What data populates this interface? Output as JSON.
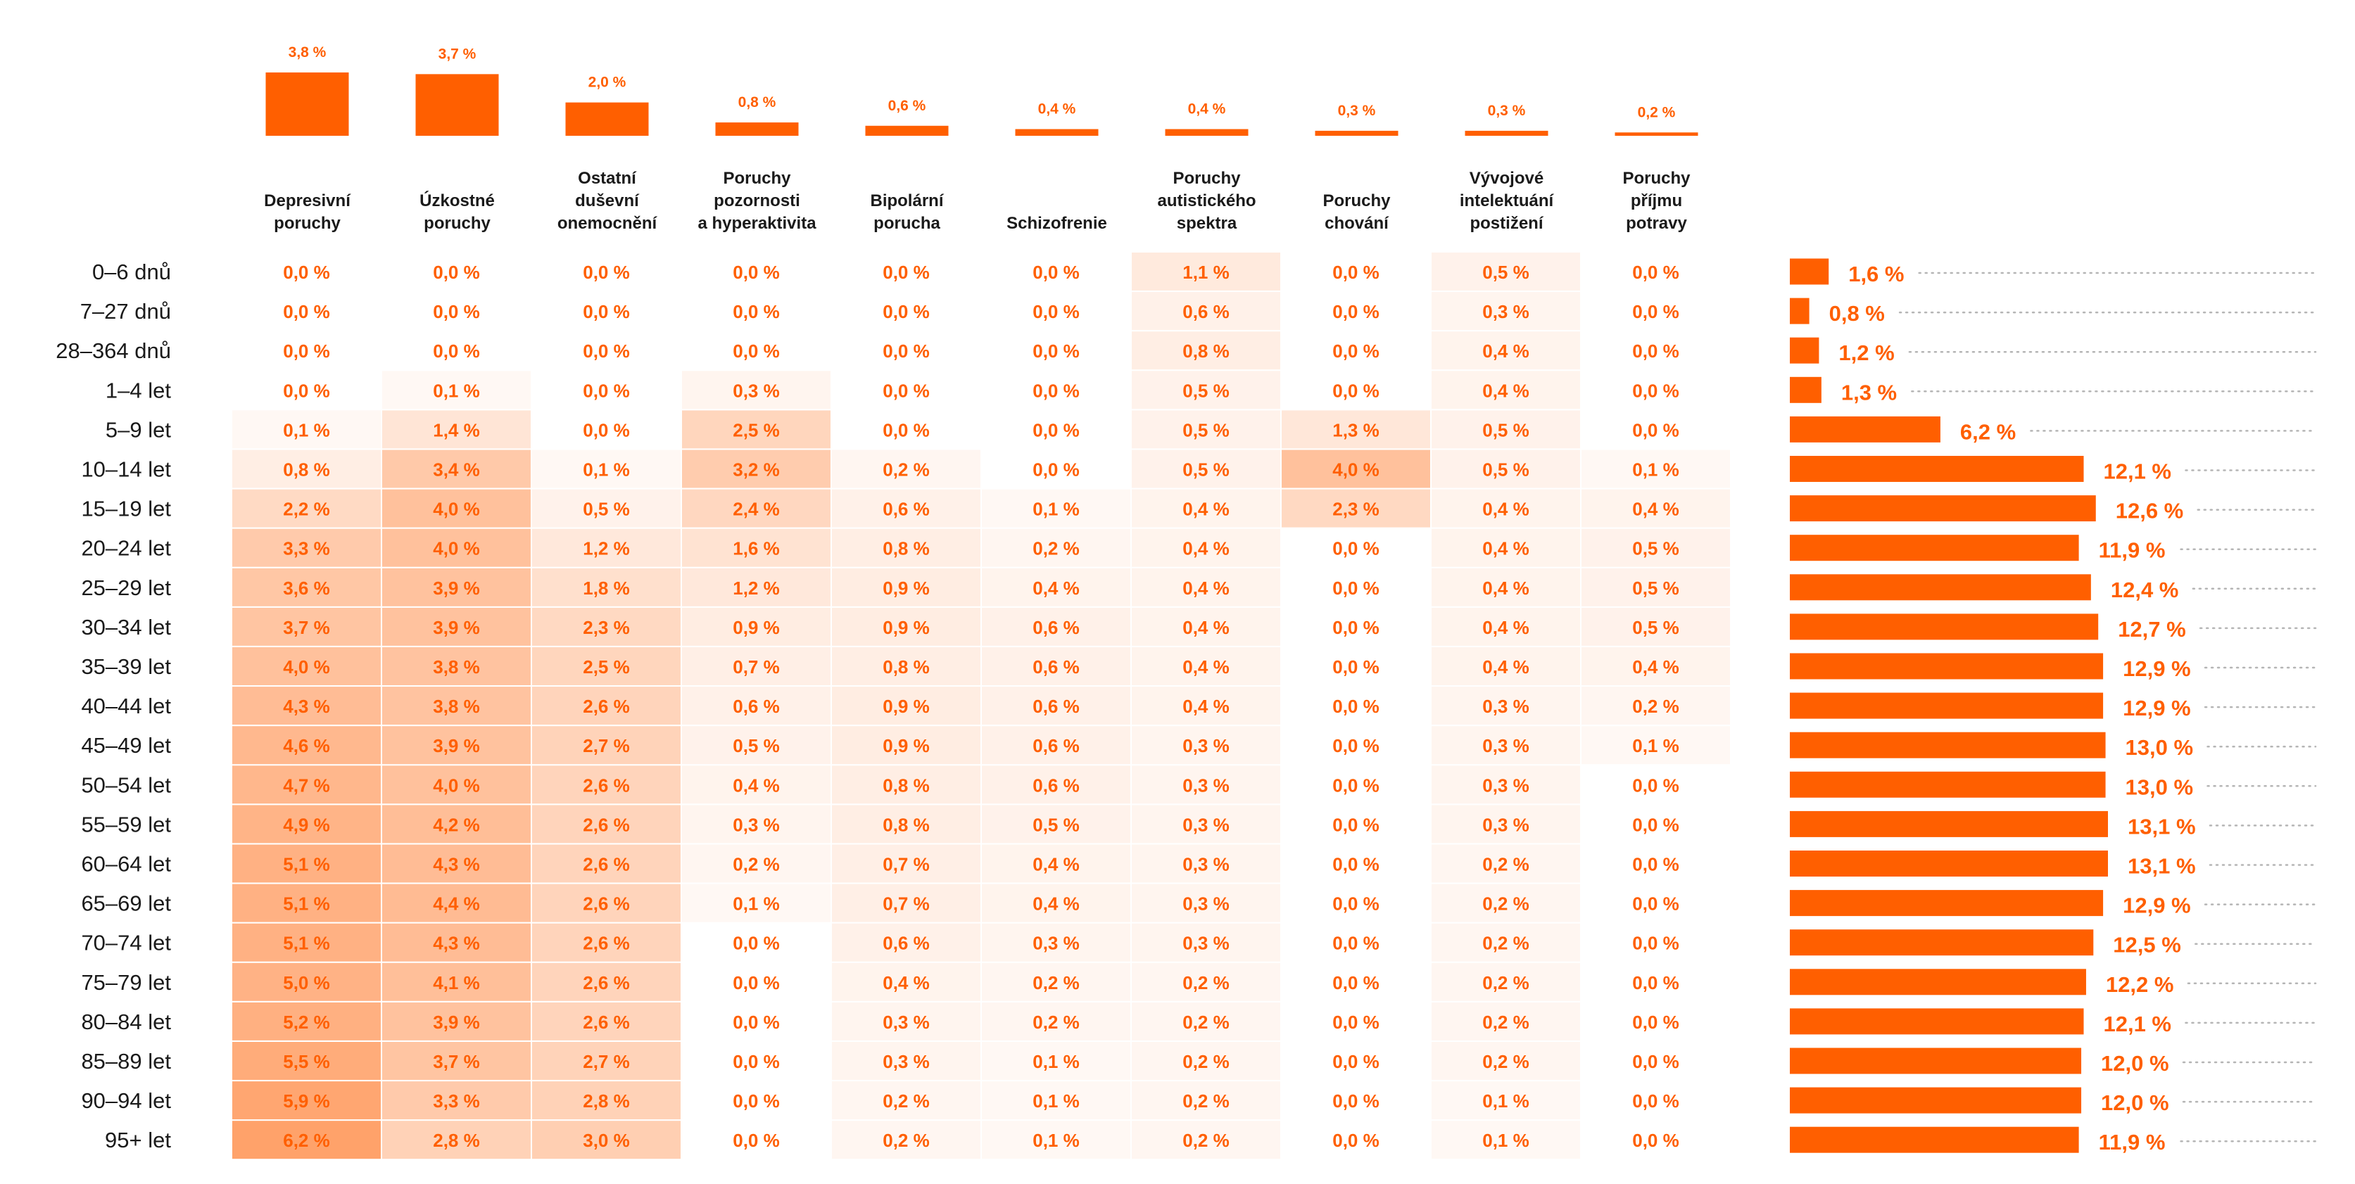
{
  "colors": {
    "accent": "#ff5f00",
    "text": "#1a1a1a",
    "dotted": "#b5b5b5"
  },
  "chart_data": {
    "type": "heatmap",
    "columns": [
      {
        "label": [
          "Depresivní",
          "poruchy"
        ],
        "overall": 3.8,
        "overall_label": "3,8 %"
      },
      {
        "label": [
          "Úzkostné",
          "poruchy"
        ],
        "overall": 3.7,
        "overall_label": "3,7 %"
      },
      {
        "label": [
          "Ostatní",
          "duševní",
          "onemocnění"
        ],
        "overall": 2.0,
        "overall_label": "2,0 %"
      },
      {
        "label": [
          "Poruchy",
          "pozornosti",
          "a hyperaktivita"
        ],
        "overall": 0.8,
        "overall_label": "0,8 %"
      },
      {
        "label": [
          "Bipolární",
          "porucha"
        ],
        "overall": 0.6,
        "overall_label": "0,6 %"
      },
      {
        "label": [
          "Schizofrenie"
        ],
        "overall": 0.4,
        "overall_label": "0,4 %"
      },
      {
        "label": [
          "Poruchy",
          "autistického",
          "spektra"
        ],
        "overall": 0.4,
        "overall_label": "0,4 %"
      },
      {
        "label": [
          "Poruchy",
          "chování"
        ],
        "overall": 0.3,
        "overall_label": "0,3 %"
      },
      {
        "label": [
          "Vývojové",
          "intelektuání",
          "postižení"
        ],
        "overall": 0.3,
        "overall_label": "0,3 %"
      },
      {
        "label": [
          "Poruchy",
          "příjmu",
          "potravy"
        ],
        "overall": 0.2,
        "overall_label": "0,2 %"
      }
    ],
    "rows": [
      "0–6 dnů",
      "7–27 dnů",
      "28–364 dnů",
      "1–4 let",
      "5–9 let",
      "10–14 let",
      "15–19 let",
      "20–24 let",
      "25–29 let",
      "30–34 let",
      "35–39 let",
      "40–44 let",
      "45–49 let",
      "50–54 let",
      "55–59 let",
      "60–64 let",
      "65–69 let",
      "70–74 let",
      "75–79 let",
      "80–84 let",
      "85–89 let",
      "90–94 let",
      "95+ let"
    ],
    "values": [
      [
        0.0,
        0.0,
        0.0,
        0.0,
        0.0,
        0.0,
        1.1,
        0.0,
        0.5,
        0.0
      ],
      [
        0.0,
        0.0,
        0.0,
        0.0,
        0.0,
        0.0,
        0.6,
        0.0,
        0.3,
        0.0
      ],
      [
        0.0,
        0.0,
        0.0,
        0.0,
        0.0,
        0.0,
        0.8,
        0.0,
        0.4,
        0.0
      ],
      [
        0.0,
        0.1,
        0.0,
        0.3,
        0.0,
        0.0,
        0.5,
        0.0,
        0.4,
        0.0
      ],
      [
        0.1,
        1.4,
        0.0,
        2.5,
        0.0,
        0.0,
        0.5,
        1.3,
        0.5,
        0.0
      ],
      [
        0.8,
        3.4,
        0.1,
        3.2,
        0.2,
        0.0,
        0.5,
        4.0,
        0.5,
        0.1
      ],
      [
        2.2,
        4.0,
        0.5,
        2.4,
        0.6,
        0.1,
        0.4,
        2.3,
        0.4,
        0.4
      ],
      [
        3.3,
        4.0,
        1.2,
        1.6,
        0.8,
        0.2,
        0.4,
        0.0,
        0.4,
        0.5
      ],
      [
        3.6,
        3.9,
        1.8,
        1.2,
        0.9,
        0.4,
        0.4,
        0.0,
        0.4,
        0.5
      ],
      [
        3.7,
        3.9,
        2.3,
        0.9,
        0.9,
        0.6,
        0.4,
        0.0,
        0.4,
        0.5
      ],
      [
        4.0,
        3.8,
        2.5,
        0.7,
        0.8,
        0.6,
        0.4,
        0.0,
        0.4,
        0.4
      ],
      [
        4.3,
        3.8,
        2.6,
        0.6,
        0.9,
        0.6,
        0.4,
        0.0,
        0.3,
        0.2
      ],
      [
        4.6,
        3.9,
        2.7,
        0.5,
        0.9,
        0.6,
        0.3,
        0.0,
        0.3,
        0.1
      ],
      [
        4.7,
        4.0,
        2.6,
        0.4,
        0.8,
        0.6,
        0.3,
        0.0,
        0.3,
        0.0
      ],
      [
        4.9,
        4.2,
        2.6,
        0.3,
        0.8,
        0.5,
        0.3,
        0.0,
        0.3,
        0.0
      ],
      [
        5.1,
        4.3,
        2.6,
        0.2,
        0.7,
        0.4,
        0.3,
        0.0,
        0.2,
        0.0
      ],
      [
        5.1,
        4.4,
        2.6,
        0.1,
        0.7,
        0.4,
        0.3,
        0.0,
        0.2,
        0.0
      ],
      [
        5.1,
        4.3,
        2.6,
        0.0,
        0.6,
        0.3,
        0.3,
        0.0,
        0.2,
        0.0
      ],
      [
        5.0,
        4.1,
        2.6,
        0.0,
        0.4,
        0.2,
        0.2,
        0.0,
        0.2,
        0.0
      ],
      [
        5.2,
        3.9,
        2.6,
        0.0,
        0.3,
        0.2,
        0.2,
        0.0,
        0.2,
        0.0
      ],
      [
        5.5,
        3.7,
        2.7,
        0.0,
        0.3,
        0.1,
        0.2,
        0.0,
        0.2,
        0.0
      ],
      [
        5.9,
        3.3,
        2.8,
        0.0,
        0.2,
        0.1,
        0.2,
        0.0,
        0.1,
        0.0
      ],
      [
        6.2,
        2.8,
        3.0,
        0.0,
        0.2,
        0.1,
        0.2,
        0.0,
        0.1,
        0.0
      ]
    ],
    "cell_labels": [
      [
        "0,0 %",
        "0,0 %",
        "0,0 %",
        "0,0 %",
        "0,0 %",
        "0,0 %",
        "1,1 %",
        "0,0 %",
        "0,5 %",
        "0,0 %"
      ],
      [
        "0,0 %",
        "0,0 %",
        "0,0 %",
        "0,0 %",
        "0,0 %",
        "0,0 %",
        "0,6 %",
        "0,0 %",
        "0,3 %",
        "0,0 %"
      ],
      [
        "0,0 %",
        "0,0 %",
        "0,0 %",
        "0,0 %",
        "0,0 %",
        "0,0 %",
        "0,8 %",
        "0,0 %",
        "0,4 %",
        "0,0 %"
      ],
      [
        "0,0 %",
        "0,1 %",
        "0,0 %",
        "0,3 %",
        "0,0 %",
        "0,0 %",
        "0,5 %",
        "0,0 %",
        "0,4 %",
        "0,0 %"
      ],
      [
        "0,1 %",
        "1,4 %",
        "0,0 %",
        "2,5 %",
        "0,0 %",
        "0,0 %",
        "0,5 %",
        "1,3 %",
        "0,5 %",
        "0,0 %"
      ],
      [
        "0,8 %",
        "3,4 %",
        "0,1 %",
        "3,2 %",
        "0,2 %",
        "0,0 %",
        "0,5 %",
        "4,0 %",
        "0,5 %",
        "0,1 %"
      ],
      [
        "2,2 %",
        "4,0 %",
        "0,5 %",
        "2,4 %",
        "0,6 %",
        "0,1 %",
        "0,4 %",
        "2,3 %",
        "0,4 %",
        "0,4 %"
      ],
      [
        "3,3 %",
        "4,0 %",
        "1,2 %",
        "1,6 %",
        "0,8 %",
        "0,2 %",
        "0,4 %",
        "0,0 %",
        "0,4 %",
        "0,5 %"
      ],
      [
        "3,6 %",
        "3,9 %",
        "1,8 %",
        "1,2 %",
        "0,9 %",
        "0,4 %",
        "0,4 %",
        "0,0 %",
        "0,4 %",
        "0,5 %"
      ],
      [
        "3,7 %",
        "3,9 %",
        "2,3 %",
        "0,9 %",
        "0,9 %",
        "0,6 %",
        "0,4 %",
        "0,0 %",
        "0,4 %",
        "0,5 %"
      ],
      [
        "4,0 %",
        "3,8 %",
        "2,5 %",
        "0,7 %",
        "0,8 %",
        "0,6 %",
        "0,4 %",
        "0,0 %",
        "0,4 %",
        "0,4 %"
      ],
      [
        "4,3 %",
        "3,8 %",
        "2,6 %",
        "0,6 %",
        "0,9 %",
        "0,6 %",
        "0,4 %",
        "0,0 %",
        "0,3 %",
        "0,2 %"
      ],
      [
        "4,6 %",
        "3,9 %",
        "2,7 %",
        "0,5 %",
        "0,9 %",
        "0,6 %",
        "0,3 %",
        "0,0 %",
        "0,3 %",
        "0,1 %"
      ],
      [
        "4,7 %",
        "4,0 %",
        "2,6 %",
        "0,4 %",
        "0,8 %",
        "0,6 %",
        "0,3 %",
        "0,0 %",
        "0,3 %",
        "0,0 %"
      ],
      [
        "4,9 %",
        "4,2 %",
        "2,6 %",
        "0,3 %",
        "0,8 %",
        "0,5 %",
        "0,3 %",
        "0,0 %",
        "0,3 %",
        "0,0 %"
      ],
      [
        "5,1 %",
        "4,3 %",
        "2,6 %",
        "0,2 %",
        "0,7 %",
        "0,4 %",
        "0,3 %",
        "0,0 %",
        "0,2 %",
        "0,0 %"
      ],
      [
        "5,1 %",
        "4,4 %",
        "2,6 %",
        "0,1 %",
        "0,7 %",
        "0,4 %",
        "0,3 %",
        "0,0 %",
        "0,2 %",
        "0,0 %"
      ],
      [
        "5,1 %",
        "4,3 %",
        "2,6 %",
        "0,0 %",
        "0,6 %",
        "0,3 %",
        "0,3 %",
        "0,0 %",
        "0,2 %",
        "0,0 %"
      ],
      [
        "5,0 %",
        "4,1 %",
        "2,6 %",
        "0,0 %",
        "0,4 %",
        "0,2 %",
        "0,2 %",
        "0,0 %",
        "0,2 %",
        "0,0 %"
      ],
      [
        "5,2 %",
        "3,9 %",
        "2,6 %",
        "0,0 %",
        "0,3 %",
        "0,2 %",
        "0,2 %",
        "0,0 %",
        "0,2 %",
        "0,0 %"
      ],
      [
        "5,5 %",
        "3,7 %",
        "2,7 %",
        "0,0 %",
        "0,3 %",
        "0,1 %",
        "0,2 %",
        "0,0 %",
        "0,2 %",
        "0,0 %"
      ],
      [
        "5,9 %",
        "3,3 %",
        "2,8 %",
        "0,0 %",
        "0,2 %",
        "0,1 %",
        "0,2 %",
        "0,0 %",
        "0,1 %",
        "0,0 %"
      ],
      [
        "6,2 %",
        "2,8 %",
        "3,0 %",
        "0,0 %",
        "0,2 %",
        "0,1 %",
        "0,2 %",
        "0,0 %",
        "0,1 %",
        "0,0 %"
      ]
    ],
    "totals": [
      1.6,
      0.8,
      1.2,
      1.3,
      6.2,
      12.1,
      12.6,
      11.9,
      12.4,
      12.7,
      12.9,
      12.9,
      13.0,
      13.0,
      13.1,
      13.1,
      12.9,
      12.5,
      12.2,
      12.1,
      12.0,
      12.0,
      11.9
    ],
    "total_labels": [
      "1,6 %",
      "0,8 %",
      "1,2 %",
      "1,3 %",
      "6,2 %",
      "12,1 %",
      "12,6 %",
      "11,9 %",
      "12,4 %",
      "12,7 %",
      "12,9 %",
      "12,9 %",
      "13,0 %",
      "13,0 %",
      "13,1 %",
      "13,1 %",
      "12,9 %",
      "12,5 %",
      "12,2 %",
      "12,1 %",
      "12,0 %",
      "12,0 %",
      "11,9 %"
    ],
    "color_max": 6.2
  }
}
